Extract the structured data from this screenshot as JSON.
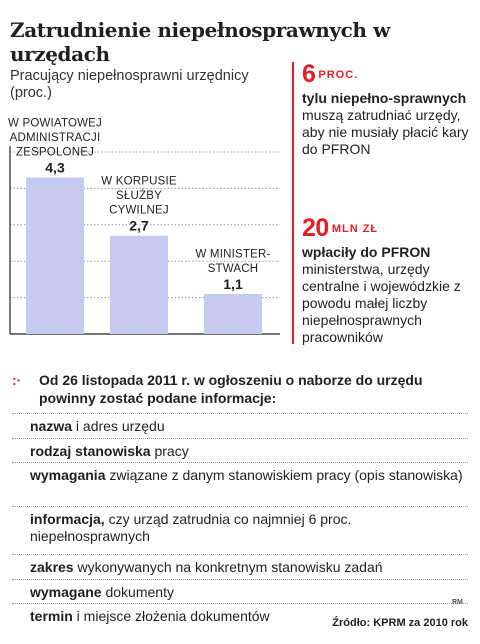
{
  "headline": "Zatrudnienie niepełnosprawnych w urzędach",
  "chart_data": {
    "type": "bar",
    "title": "Pracujący niepełnosprawni urzędnicy (proc.)",
    "categories": [
      [
        "W POWIATOWEJ",
        "ADMINISTRACJI",
        "ZESPOLONEJ"
      ],
      [
        "W KORPUSIE",
        "SŁUŻBY",
        "CYWILNEJ"
      ],
      [
        "W MINISTER-",
        "STWACH"
      ]
    ],
    "values": [
      4.3,
      2.7,
      1.1
    ],
    "value_labels": [
      "4,3",
      "2,7",
      "1,1"
    ],
    "ylim": [
      0,
      5
    ],
    "grid": true,
    "colors": {
      "bar": "#c6c9f0",
      "grid": "#999999",
      "axis": "#222222"
    }
  },
  "facts": [
    {
      "number": "6",
      "unit": "PROC.",
      "bold": "tylu niepełno-sprawnych",
      "rest": " muszą zatrudniać urzędy, aby nie musiały płacić kary do PFRON"
    },
    {
      "number": "20",
      "unit": "MLN ZŁ",
      "bold": "wpłaciły do PFRON",
      "rest": " ministerstwa, urzędy centralne i wojewódzkie z powodu małej liczby niepełnosprawnych pracowników"
    }
  ],
  "info": {
    "bullet": ":·",
    "header": "Od 26 listopada 2011 r. w ogłoszeniu o naborze do urzędu powinny zostać podane informacje:",
    "items": [
      {
        "bold": "nazwa",
        "rest": " i adres urzędu"
      },
      {
        "bold": "rodzaj stanowiska",
        "rest": " pracy"
      },
      {
        "bold": "wymagania",
        "rest": " związane z danym stanowiskiem pracy (opis stanowiska)"
      },
      {
        "bold": "informacja,",
        "rest": " czy urząd zatrudnia co najmniej 6 proc. niepełnosprawnych"
      },
      {
        "bold": "zakres",
        "rest": " wykonywanych na konkretnym stanowisku zadań"
      },
      {
        "bold": "wymagane",
        "rest": " dokumenty"
      },
      {
        "bold": "termin",
        "rest": " i miejsce złożenia dokumentów"
      }
    ]
  },
  "credit": "RM",
  "source": "Źródło: KPRM za 2010 rok",
  "accent_color": "#e31e24"
}
